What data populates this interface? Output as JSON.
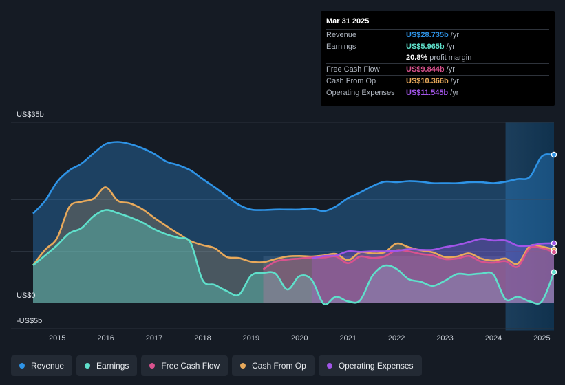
{
  "chart_data": {
    "type": "area",
    "y_axis": {
      "top_label": "US$35b",
      "zero_label": "US$0",
      "bottom_label": "-US$5b",
      "ylim": [
        -5,
        35
      ]
    },
    "x_axis": {
      "ticks": [
        "2015",
        "2016",
        "2017",
        "2018",
        "2019",
        "2020",
        "2021",
        "2022",
        "2023",
        "2024",
        "2025"
      ],
      "xlim": [
        2014.5,
        2025.25
      ]
    },
    "forecast_start": 2024.25,
    "series": [
      {
        "key": "revenue",
        "name": "Revenue",
        "color": "#2e93e6",
        "points": [
          [
            2014.5,
            17.3
          ],
          [
            2014.75,
            19.8
          ],
          [
            2015.0,
            23.5
          ],
          [
            2015.25,
            25.7
          ],
          [
            2015.5,
            27.0
          ],
          [
            2015.75,
            29.0
          ],
          [
            2016.0,
            30.8
          ],
          [
            2016.25,
            31.2
          ],
          [
            2016.5,
            30.8
          ],
          [
            2016.75,
            30.0
          ],
          [
            2017.0,
            28.9
          ],
          [
            2017.25,
            27.4
          ],
          [
            2017.5,
            26.7
          ],
          [
            2017.75,
            25.7
          ],
          [
            2018.0,
            24.0
          ],
          [
            2018.25,
            22.4
          ],
          [
            2018.5,
            20.7
          ],
          [
            2018.75,
            19.0
          ],
          [
            2019.0,
            18.1
          ],
          [
            2019.25,
            18.0
          ],
          [
            2019.5,
            18.1
          ],
          [
            2019.75,
            18.1
          ],
          [
            2020.0,
            18.1
          ],
          [
            2020.25,
            18.3
          ],
          [
            2020.5,
            17.8
          ],
          [
            2020.75,
            18.7
          ],
          [
            2021.0,
            20.3
          ],
          [
            2021.25,
            21.4
          ],
          [
            2021.5,
            22.6
          ],
          [
            2021.75,
            23.5
          ],
          [
            2022.0,
            23.4
          ],
          [
            2022.25,
            23.6
          ],
          [
            2022.5,
            23.5
          ],
          [
            2022.75,
            23.2
          ],
          [
            2023.0,
            23.2
          ],
          [
            2023.25,
            23.2
          ],
          [
            2023.5,
            23.4
          ],
          [
            2023.75,
            23.4
          ],
          [
            2024.0,
            23.2
          ],
          [
            2024.25,
            23.5
          ],
          [
            2024.5,
            24.0
          ],
          [
            2024.75,
            24.4
          ],
          [
            2025.0,
            28.4
          ],
          [
            2025.25,
            28.735
          ]
        ]
      },
      {
        "key": "earnings",
        "name": "Earnings",
        "color": "#5fe0cb",
        "points": [
          [
            2014.5,
            7.3
          ],
          [
            2014.75,
            9.2
          ],
          [
            2015.0,
            11.2
          ],
          [
            2015.25,
            13.5
          ],
          [
            2015.5,
            14.5
          ],
          [
            2015.75,
            16.8
          ],
          [
            2016.0,
            18.0
          ],
          [
            2016.25,
            17.4
          ],
          [
            2016.5,
            16.6
          ],
          [
            2016.75,
            15.6
          ],
          [
            2017.0,
            14.3
          ],
          [
            2017.25,
            13.3
          ],
          [
            2017.5,
            12.6
          ],
          [
            2017.75,
            11.7
          ],
          [
            2018.0,
            4.4
          ],
          [
            2018.25,
            3.5
          ],
          [
            2018.5,
            2.3
          ],
          [
            2018.75,
            1.6
          ],
          [
            2019.0,
            5.3
          ],
          [
            2019.25,
            5.8
          ],
          [
            2019.5,
            5.7
          ],
          [
            2019.75,
            2.6
          ],
          [
            2020.0,
            5.2
          ],
          [
            2020.25,
            4.5
          ],
          [
            2020.5,
            -0.2
          ],
          [
            2020.75,
            1.2
          ],
          [
            2021.0,
            0.3
          ],
          [
            2021.25,
            0.5
          ],
          [
            2021.5,
            5.2
          ],
          [
            2021.75,
            7.2
          ],
          [
            2022.0,
            6.6
          ],
          [
            2022.25,
            4.6
          ],
          [
            2022.5,
            4.1
          ],
          [
            2022.75,
            3.3
          ],
          [
            2023.0,
            4.3
          ],
          [
            2023.25,
            5.6
          ],
          [
            2023.5,
            5.5
          ],
          [
            2023.75,
            5.7
          ],
          [
            2024.0,
            5.5
          ],
          [
            2024.25,
            0.7
          ],
          [
            2024.5,
            1.2
          ],
          [
            2024.75,
            0.3
          ],
          [
            2025.0,
            0.3
          ],
          [
            2025.25,
            5.965
          ]
        ]
      },
      {
        "key": "fcf",
        "name": "Free Cash Flow",
        "color": "#d9528e",
        "points": [
          [
            2019.25,
            6.5
          ],
          [
            2019.5,
            8.0
          ],
          [
            2019.75,
            8.4
          ],
          [
            2020.0,
            8.6
          ],
          [
            2020.25,
            8.8
          ],
          [
            2020.5,
            8.8
          ],
          [
            2020.75,
            9.0
          ],
          [
            2021.0,
            7.7
          ],
          [
            2021.25,
            9.0
          ],
          [
            2021.5,
            8.7
          ],
          [
            2021.75,
            9.0
          ],
          [
            2022.0,
            10.2
          ],
          [
            2022.25,
            10.0
          ],
          [
            2022.5,
            9.5
          ],
          [
            2022.75,
            9.2
          ],
          [
            2023.0,
            8.5
          ],
          [
            2023.25,
            8.6
          ],
          [
            2023.5,
            9.1
          ],
          [
            2023.75,
            8.0
          ],
          [
            2024.0,
            7.8
          ],
          [
            2024.25,
            8.1
          ],
          [
            2024.5,
            7.0
          ],
          [
            2024.75,
            10.6
          ],
          [
            2025.0,
            10.6
          ],
          [
            2025.25,
            9.844
          ]
        ]
      },
      {
        "key": "cfo",
        "name": "Cash From Op",
        "color": "#e8a95b",
        "points": [
          [
            2014.5,
            7.3
          ],
          [
            2014.75,
            10.3
          ],
          [
            2015.0,
            12.6
          ],
          [
            2015.25,
            18.6
          ],
          [
            2015.5,
            19.6
          ],
          [
            2015.75,
            20.2
          ],
          [
            2016.0,
            22.4
          ],
          [
            2016.25,
            19.8
          ],
          [
            2016.5,
            19.3
          ],
          [
            2016.75,
            18.2
          ],
          [
            2017.0,
            16.5
          ],
          [
            2017.25,
            14.9
          ],
          [
            2017.5,
            13.4
          ],
          [
            2017.75,
            12.0
          ],
          [
            2018.0,
            11.2
          ],
          [
            2018.25,
            10.6
          ],
          [
            2018.5,
            8.9
          ],
          [
            2018.75,
            8.7
          ],
          [
            2019.0,
            8.0
          ],
          [
            2019.25,
            7.9
          ],
          [
            2019.5,
            8.5
          ],
          [
            2019.75,
            9.0
          ],
          [
            2020.0,
            9.1
          ],
          [
            2020.25,
            9.0
          ],
          [
            2020.5,
            9.2
          ],
          [
            2020.75,
            9.5
          ],
          [
            2021.0,
            8.3
          ],
          [
            2021.25,
            9.8
          ],
          [
            2021.5,
            9.6
          ],
          [
            2021.75,
            9.8
          ],
          [
            2022.0,
            11.5
          ],
          [
            2022.25,
            10.8
          ],
          [
            2022.5,
            10.2
          ],
          [
            2022.75,
            9.8
          ],
          [
            2023.0,
            8.9
          ],
          [
            2023.25,
            9.0
          ],
          [
            2023.5,
            9.6
          ],
          [
            2023.75,
            8.6
          ],
          [
            2024.0,
            8.2
          ],
          [
            2024.25,
            8.6
          ],
          [
            2024.5,
            7.6
          ],
          [
            2024.75,
            11.0
          ],
          [
            2025.0,
            10.9
          ],
          [
            2025.25,
            10.366
          ]
        ]
      },
      {
        "key": "opex",
        "name": "Operating Expenses",
        "color": "#a155e8",
        "points": [
          [
            2020.25,
            8.6
          ],
          [
            2020.5,
            9.1
          ],
          [
            2020.75,
            9.2
          ],
          [
            2021.0,
            10.0
          ],
          [
            2021.25,
            9.9
          ],
          [
            2021.5,
            10.0
          ],
          [
            2021.75,
            10.0
          ],
          [
            2022.0,
            10.1
          ],
          [
            2022.25,
            10.4
          ],
          [
            2022.5,
            10.3
          ],
          [
            2022.75,
            10.3
          ],
          [
            2023.0,
            10.8
          ],
          [
            2023.25,
            11.2
          ],
          [
            2023.5,
            11.8
          ],
          [
            2023.75,
            12.4
          ],
          [
            2024.0,
            12.1
          ],
          [
            2024.25,
            12.1
          ],
          [
            2024.5,
            11.1
          ],
          [
            2024.75,
            11.1
          ],
          [
            2025.0,
            11.5
          ],
          [
            2025.25,
            11.545
          ]
        ]
      }
    ]
  },
  "tooltip": {
    "date": "Mar 31 2025",
    "rows": [
      {
        "key": "revenue",
        "label": "Revenue",
        "value": "US$28.735b",
        "unit": "/yr",
        "color": "#2e93e6"
      },
      {
        "key": "earnings",
        "label": "Earnings",
        "value": "US$5.965b",
        "unit": "/yr",
        "color": "#5fe0cb"
      },
      {
        "key": "margin",
        "label": "",
        "value": "20.8%",
        "unit": "profit margin",
        "color": "#ffffff"
      },
      {
        "key": "fcf",
        "label": "Free Cash Flow",
        "value": "US$9.844b",
        "unit": "/yr",
        "color": "#d9528e"
      },
      {
        "key": "cfo",
        "label": "Cash From Op",
        "value": "US$10.366b",
        "unit": "/yr",
        "color": "#e8a95b"
      },
      {
        "key": "opex",
        "label": "Operating Expenses",
        "value": "US$11.545b",
        "unit": "/yr",
        "color": "#a155e8"
      }
    ]
  },
  "legend": [
    {
      "key": "revenue",
      "label": "Revenue",
      "color": "#2e93e6"
    },
    {
      "key": "earnings",
      "label": "Earnings",
      "color": "#5fe0cb"
    },
    {
      "key": "fcf",
      "label": "Free Cash Flow",
      "color": "#d9528e"
    },
    {
      "key": "cfo",
      "label": "Cash From Op",
      "color": "#e8a95b"
    },
    {
      "key": "opex",
      "label": "Operating Expenses",
      "color": "#a155e8"
    }
  ]
}
